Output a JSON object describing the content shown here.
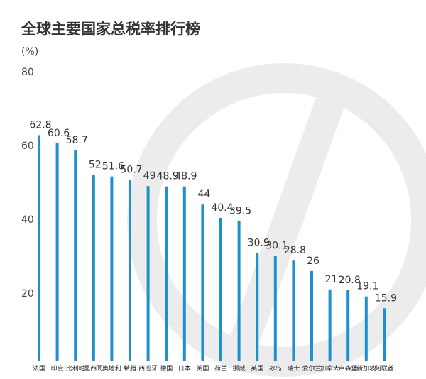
{
  "chart_data": {
    "type": "bar",
    "title": "全球主要国家总税率排行榜",
    "unit": "(%)",
    "ylim": [
      0,
      80
    ],
    "yticks": [
      20,
      40,
      60,
      80
    ],
    "grid": false,
    "bar_color": "#1e8fcf",
    "categories": [
      "法国",
      "印度",
      "比利时",
      "墨西哥",
      "奥地利",
      "希腊",
      "西班牙",
      "德国",
      "日本",
      "美国",
      "荷兰",
      "挪威",
      "英国",
      "冰岛",
      "瑞士",
      "爱尔兰",
      "加拿大",
      "卢森堡",
      "新加坡",
      "阿联酋"
    ],
    "values": [
      62.8,
      60.6,
      58.7,
      52,
      51.6,
      50.7,
      49,
      48.9,
      48.9,
      44,
      40.4,
      39.5,
      30.9,
      30.1,
      28.8,
      26,
      21,
      20.8,
      19.1,
      15.9
    ],
    "value_labels": [
      "62.8",
      "60.6",
      "58.7",
      "52",
      "51.6",
      "50.7",
      "49",
      "48.9",
      "48.9",
      "44",
      "40.4",
      "39.5",
      "30.9",
      "30.1",
      "28.8",
      "26",
      "21",
      "20.8",
      "19.1",
      "15.9"
    ]
  }
}
